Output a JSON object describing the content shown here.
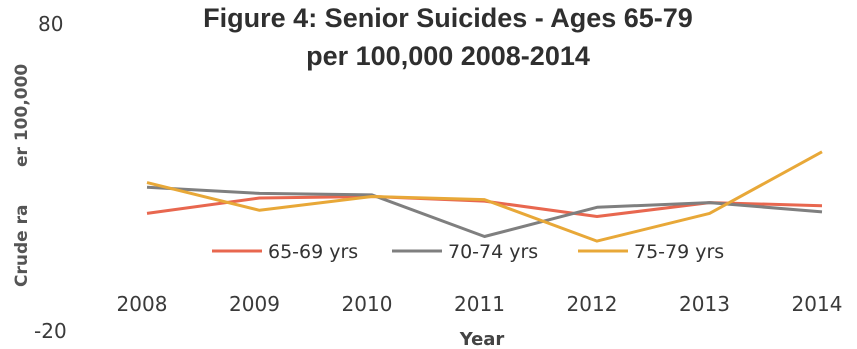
{
  "chart_data": {
    "type": "line",
    "title_lines": [
      "Figure 4: Senior Suicides - Ages 65-79",
      "per 100,000 2008-2014"
    ],
    "xlabel": "Year",
    "ylabel_parts": [
      "Crude ra",
      "er 100,000"
    ],
    "y_tick_labels": [
      "80",
      "-20"
    ],
    "ylim": [
      -20,
      80
    ],
    "categories": [
      "2008",
      "2009",
      "2010",
      "2011",
      "2012",
      "2013",
      "2014"
    ],
    "series": [
      {
        "name": "65-69 yrs",
        "color": "#e8674f",
        "values": [
          18.5,
          23.5,
          24.0,
          22.5,
          17.5,
          22.0,
          21.0
        ]
      },
      {
        "name": "70-74 yrs",
        "color": "#7f7f7f",
        "values": [
          27.0,
          25.0,
          24.5,
          11.0,
          20.5,
          22.0,
          19.0
        ]
      },
      {
        "name": "75-79 yrs",
        "color": "#e8a838",
        "values": [
          28.5,
          19.5,
          24.0,
          23.0,
          9.5,
          18.5,
          38.5
        ]
      }
    ],
    "legend_position": "bottom",
    "grid": false
  }
}
